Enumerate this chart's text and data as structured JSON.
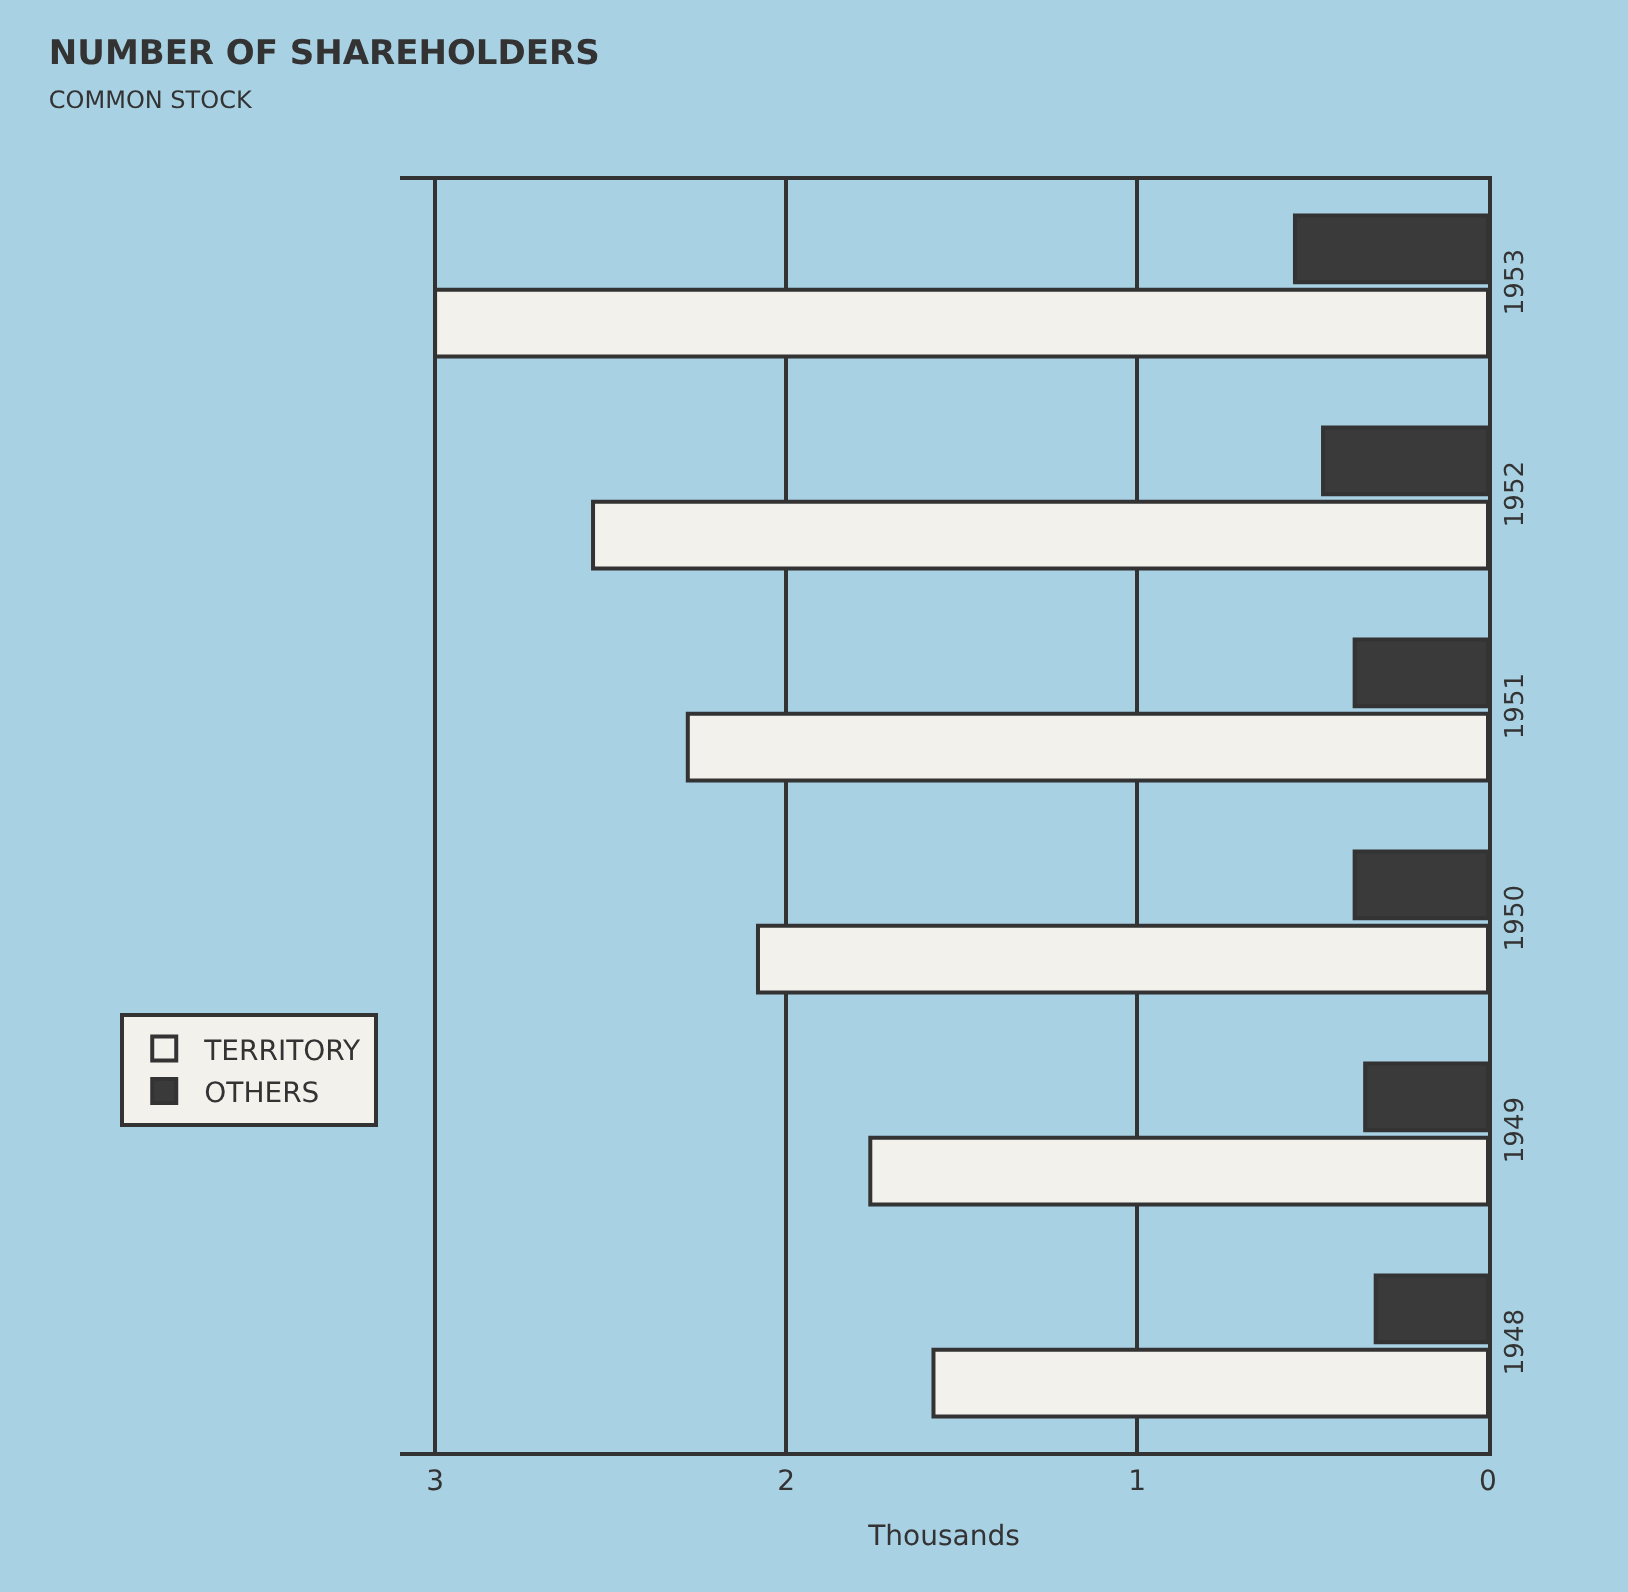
{
  "chart_data": {
    "type": "bar",
    "orientation": "horizontal",
    "title": "NUMBER OF SHAREHOLDERS",
    "subtitle": "COMMON STOCK",
    "xlabel": "Thousands",
    "categories": [
      "1953",
      "1952",
      "1951",
      "1950",
      "1949",
      "1948"
    ],
    "series": [
      {
        "name": "TERRITORY",
        "color": "#f2f1ec",
        "values": [
          3.0,
          2.55,
          2.28,
          2.08,
          1.76,
          1.58
        ]
      },
      {
        "name": "OTHERS",
        "color": "#3a3a3a",
        "values": [
          0.55,
          0.47,
          0.38,
          0.38,
          0.35,
          0.32
        ]
      }
    ],
    "xlim": [
      3.1,
      0
    ],
    "xticks": [
      0,
      1,
      2,
      3
    ],
    "grid": "x",
    "legend": "left"
  }
}
